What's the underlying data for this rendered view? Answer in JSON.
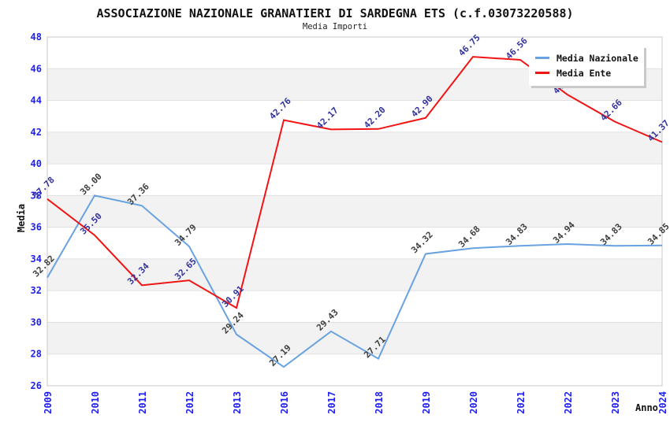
{
  "header": {
    "title": "ASSOCIAZIONE NAZIONALE GRANATIERI DI SARDEGNA ETS (c.f.03073220588)",
    "subtitle": "Media Importi"
  },
  "chart_data": {
    "type": "line",
    "title": "ASSOCIAZIONE NAZIONALE GRANATIERI DI SARDEGNA ETS (c.f.03073220588)",
    "subtitle": "Media Importi",
    "xlabel": "Anno",
    "ylabel": "Media",
    "ylim": [
      26,
      48
    ],
    "ytick_step": 2,
    "grid": "horizontal",
    "legend_position": "top-right",
    "categories": [
      "2009",
      "2010",
      "2011",
      "2012",
      "2013",
      "2016",
      "2017",
      "2018",
      "2019",
      "2020",
      "2021",
      "2022",
      "2023",
      "2024"
    ],
    "series": [
      {
        "name": "Media Nazionale",
        "color": "#69a2e0",
        "label_color": "#3d3d3d",
        "values": [
          "32.82",
          "38.00",
          "37.36",
          "34.79",
          "29.24",
          "27.19",
          "29.43",
          "27.71",
          "34.32",
          "34.68",
          "34.83",
          "34.94",
          "34.83",
          "34.85"
        ]
      },
      {
        "name": "Media Ente",
        "color": "#f01414",
        "label_color": "#32329b",
        "values": [
          "37.78",
          "35.50",
          "32.34",
          "32.65",
          "30.91",
          "42.76",
          "42.17",
          "42.20",
          "42.90",
          "46.75",
          "46.56",
          "44.36",
          "42.66",
          "41.37"
        ]
      }
    ],
    "colors": {
      "axis_tick_labels": "#2020f0",
      "band_fill": "#f2f2f2",
      "grid_line": "#e0e0e0",
      "plot_border": "#c8c8c8",
      "background": "#ffffff"
    }
  }
}
